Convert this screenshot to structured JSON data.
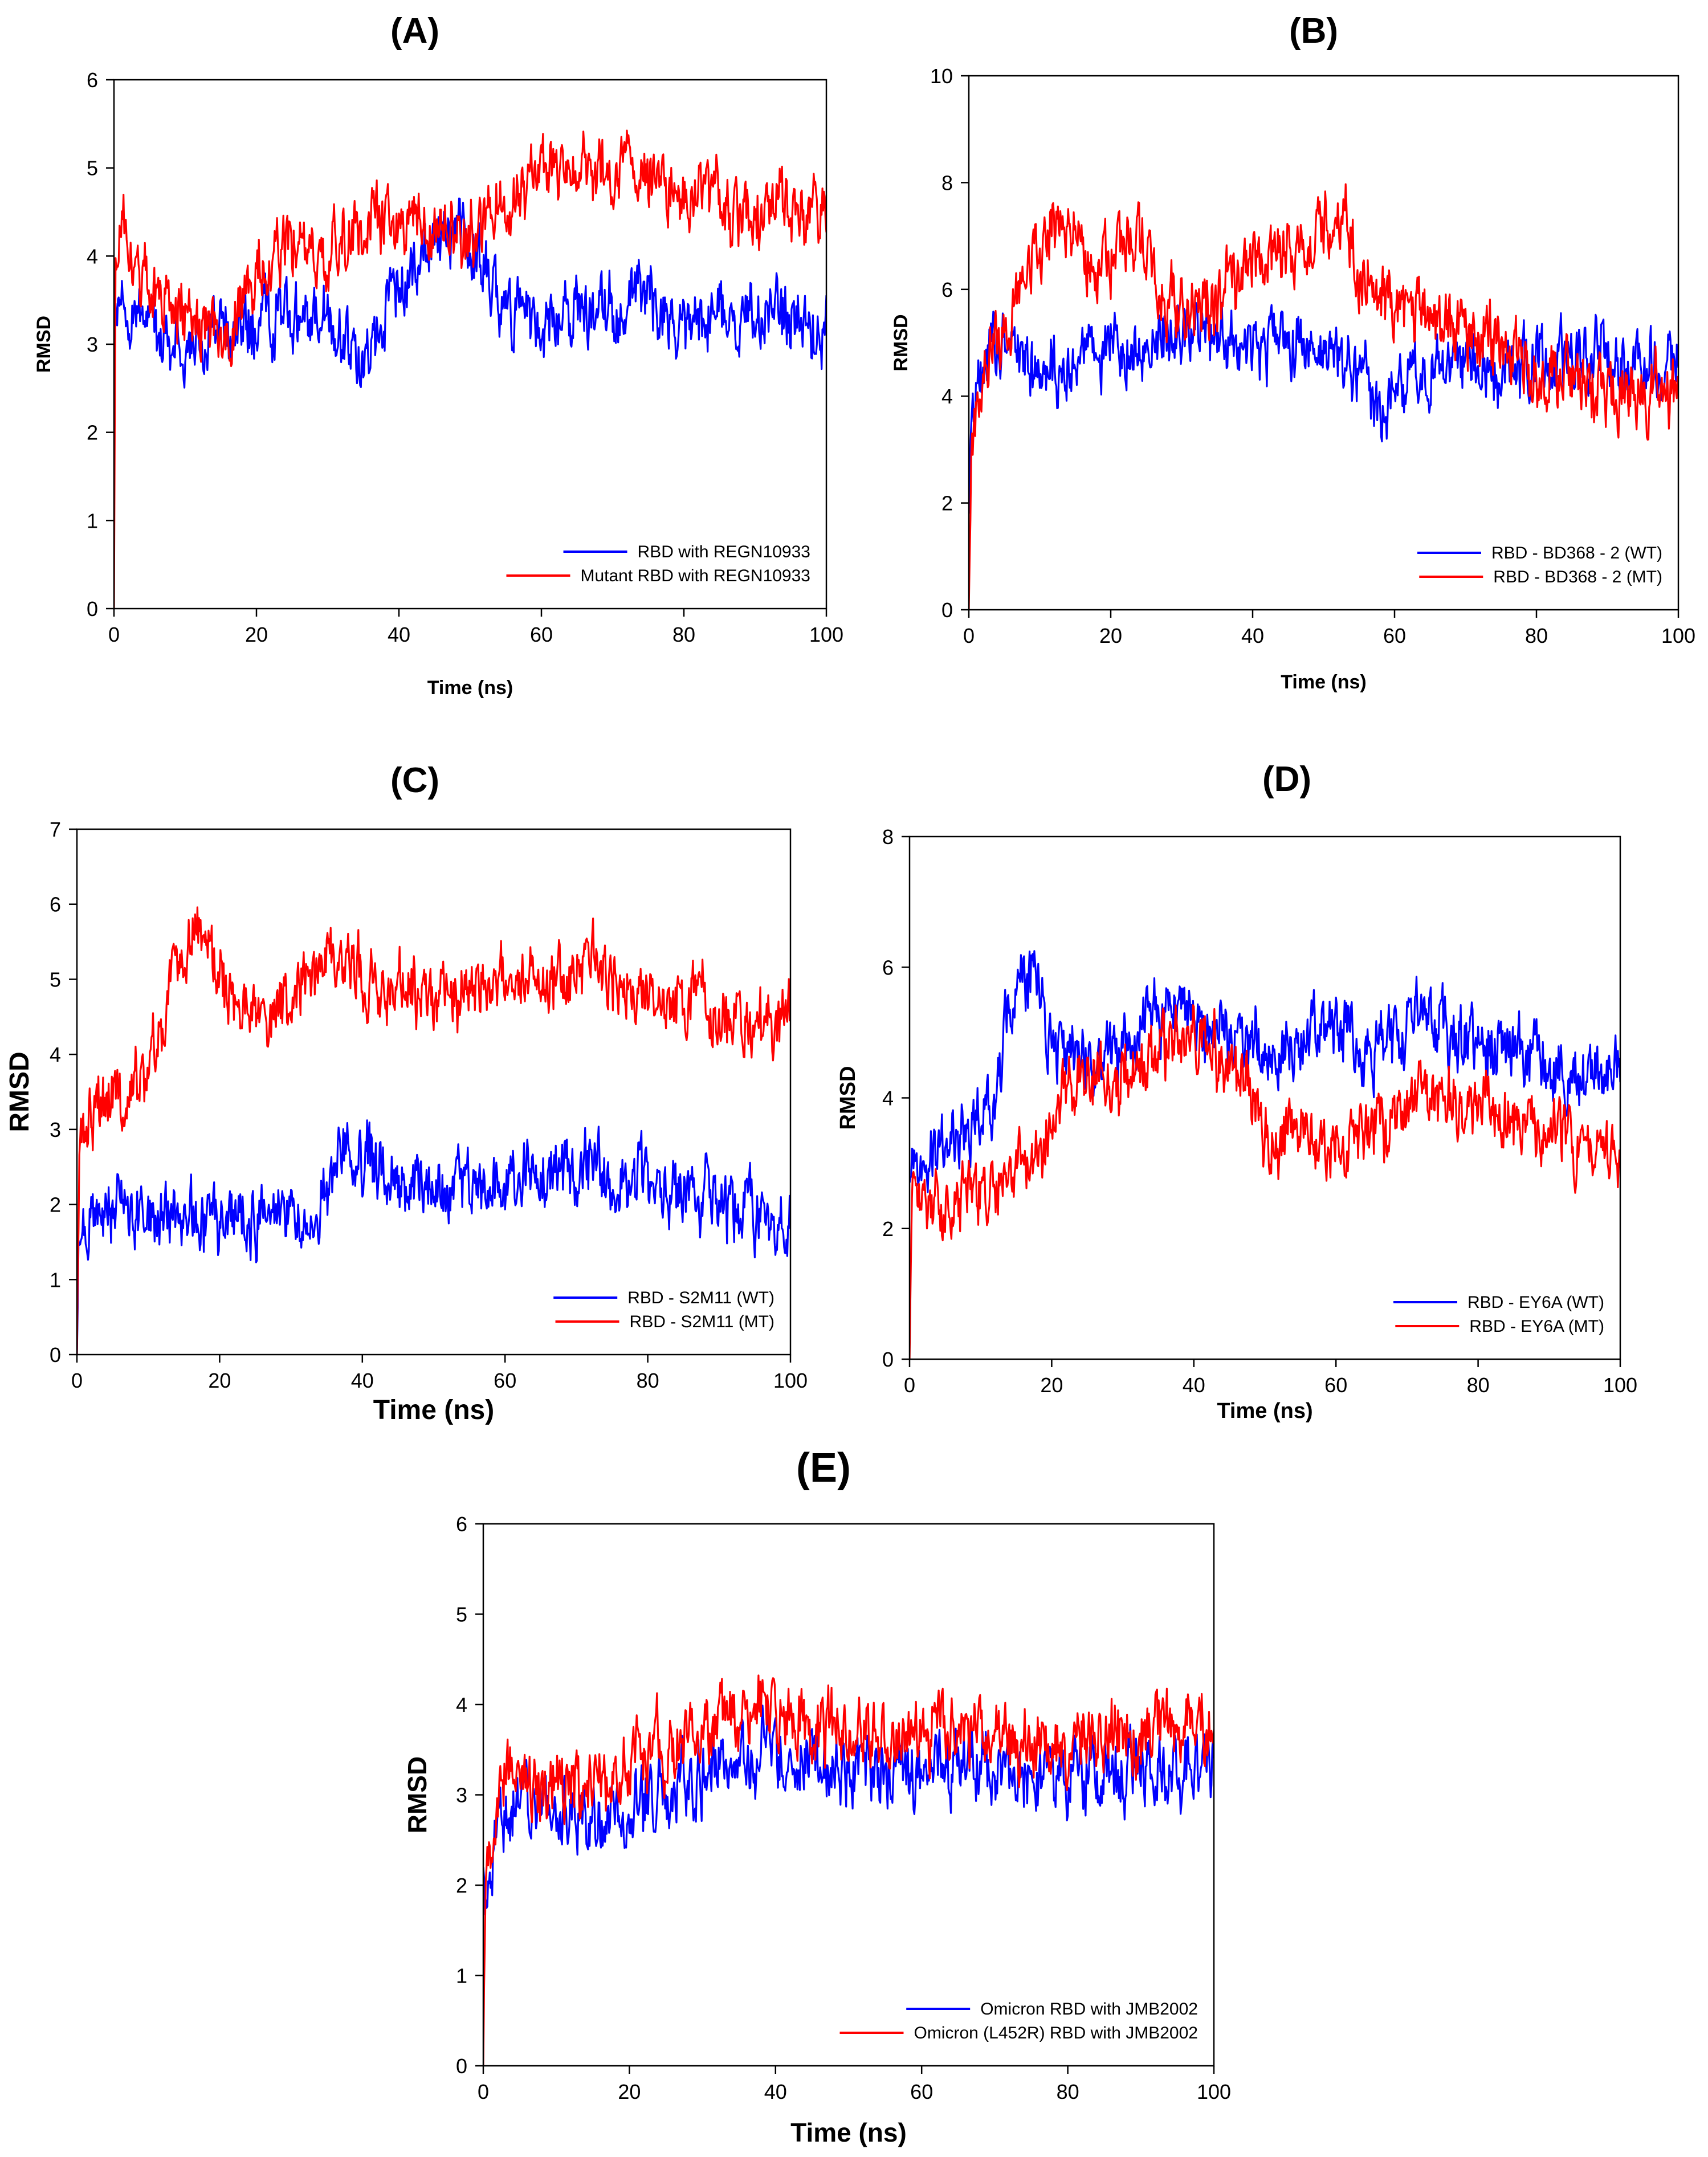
{
  "colors": {
    "wt": "#0000ff",
    "mt": "#ff0000",
    "axis": "#000000",
    "background": "#ffffff"
  },
  "chart_data": [
    {
      "id": "A",
      "type": "line",
      "title": "(A)",
      "xlabel": "Time (ns)",
      "ylabel": "RMSD",
      "xlim": [
        0,
        100
      ],
      "ylim": [
        0,
        6
      ],
      "xticks": [
        0,
        20,
        40,
        60,
        80,
        100
      ],
      "yticks": [
        0,
        1,
        2,
        3,
        4,
        5,
        6
      ],
      "grid": false,
      "legend_position": "bottom-right",
      "series": [
        {
          "name": "RBD with REGN10933",
          "color": "#0000ff",
          "x": [
            0,
            0.2,
            1,
            2,
            3,
            4,
            5,
            7,
            10,
            15,
            20,
            25,
            30,
            33,
            35,
            37,
            40,
            43,
            45,
            48,
            50,
            52,
            55,
            58,
            60,
            65,
            70,
            73,
            75,
            80,
            85,
            90,
            95,
            100
          ],
          "y": [
            1.9,
            3.3,
            3.7,
            3.5,
            3.3,
            3.4,
            3.2,
            3.1,
            3.0,
            3.1,
            3.2,
            3.3,
            3.2,
            3.0,
            2.8,
            3.1,
            3.6,
            4.0,
            4.2,
            4.3,
            4.1,
            3.8,
            3.5,
            3.2,
            3.1,
            3.3,
            3.4,
            3.7,
            3.5,
            3.2,
            3.3,
            3.2,
            3.3,
            3.2
          ]
        },
        {
          "name": "Mutant RBD with REGN10933",
          "color": "#ff0000",
          "x": [
            0,
            0.2,
            1,
            2,
            3,
            5,
            8,
            10,
            15,
            18,
            20,
            25,
            30,
            33,
            35,
            40,
            45,
            50,
            55,
            60,
            65,
            70,
            73,
            75,
            80,
            85,
            90,
            95,
            100
          ],
          "y": [
            0,
            3.8,
            4.5,
            4.1,
            3.8,
            3.6,
            3.4,
            3.3,
            3.1,
            3.3,
            3.8,
            4.1,
            3.9,
            4.3,
            4.4,
            4.5,
            4.4,
            4.3,
            4.6,
            4.9,
            5.0,
            4.9,
            5.0,
            4.9,
            4.7,
            4.6,
            4.5,
            4.6,
            4.4
          ]
        }
      ]
    },
    {
      "id": "B",
      "type": "line",
      "title": "(B)",
      "xlabel": "Time (ns)",
      "ylabel": "RMSD",
      "xlim": [
        0,
        100
      ],
      "ylim": [
        0,
        10
      ],
      "xticks": [
        0,
        20,
        40,
        60,
        80,
        100
      ],
      "yticks": [
        0,
        2,
        4,
        6,
        8,
        10
      ],
      "grid": false,
      "legend_position": "bottom-right",
      "series": [
        {
          "name": "RBD - BD368 - 2 (WT)",
          "color": "#0000ff",
          "x": [
            0,
            0.3,
            1,
            2,
            4,
            6,
            8,
            10,
            15,
            20,
            25,
            30,
            35,
            40,
            45,
            50,
            55,
            58,
            60,
            65,
            70,
            75,
            80,
            85,
            90,
            95,
            100
          ],
          "y": [
            1.8,
            3.8,
            4.3,
            4.6,
            4.8,
            4.9,
            4.7,
            4.4,
            4.6,
            4.9,
            5.0,
            5.2,
            5.1,
            4.8,
            5.0,
            4.9,
            4.5,
            3.6,
            4.2,
            4.5,
            4.6,
            4.5,
            4.8,
            4.6,
            4.8,
            4.6,
            4.7
          ]
        },
        {
          "name": "RBD - BD368 - 2 (MT)",
          "color": "#ff0000",
          "x": [
            0,
            0.3,
            1,
            2,
            4,
            6,
            8,
            10,
            12,
            15,
            20,
            23,
            25,
            28,
            30,
            35,
            38,
            40,
            45,
            48,
            50,
            52,
            55,
            60,
            65,
            70,
            75,
            80,
            85,
            90,
            95,
            100
          ],
          "y": [
            0,
            2.5,
            3.8,
            4.5,
            5.0,
            5.5,
            6.0,
            6.8,
            7.3,
            6.8,
            6.5,
            7.0,
            6.6,
            6.0,
            5.7,
            5.6,
            6.2,
            6.5,
            6.6,
            6.9,
            7.2,
            7.6,
            6.4,
            5.9,
            5.5,
            5.1,
            4.9,
            4.5,
            4.3,
            4.1,
            3.9,
            4.2
          ]
        }
      ]
    },
    {
      "id": "C",
      "type": "line",
      "title": "(C)",
      "xlabel": "Time (ns)",
      "ylabel": "RMSD",
      "xlim": [
        0,
        100
      ],
      "ylim": [
        0,
        7
      ],
      "xticks": [
        0,
        20,
        40,
        60,
        80,
        100
      ],
      "yticks": [
        0,
        1,
        2,
        3,
        4,
        5,
        6,
        7
      ],
      "grid": false,
      "legend_position": "bottom-right",
      "series": [
        {
          "name": "RBD - S2M11 (WT)",
          "color": "#0000ff",
          "x": [
            0,
            0.3,
            1,
            3,
            5,
            10,
            15,
            20,
            25,
            30,
            33,
            35,
            37,
            40,
            43,
            45,
            50,
            55,
            60,
            65,
            70,
            73,
            75,
            80,
            85,
            88,
            90,
            95,
            100
          ],
          "y": [
            0,
            1.7,
            1.8,
            1.8,
            1.9,
            1.8,
            1.8,
            1.8,
            1.8,
            1.9,
            1.9,
            2.1,
            2.7,
            2.7,
            2.4,
            2.3,
            2.3,
            2.1,
            2.3,
            2.5,
            2.4,
            2.5,
            2.3,
            2.2,
            2.0,
            2.2,
            2.0,
            1.8,
            1.8
          ]
        },
        {
          "name": "RBD - S2M11 (MT)",
          "color": "#ff0000",
          "x": [
            0,
            0.3,
            1,
            3,
            5,
            8,
            10,
            12,
            14,
            16,
            18,
            20,
            22,
            25,
            28,
            30,
            32,
            35,
            38,
            40,
            42,
            45,
            50,
            55,
            60,
            65,
            70,
            72,
            75,
            80,
            85,
            88,
            90,
            95,
            100
          ],
          "y": [
            0,
            2.8,
            3.0,
            3.2,
            3.4,
            3.5,
            3.9,
            4.3,
            5.1,
            5.6,
            5.8,
            5.0,
            4.6,
            4.5,
            4.5,
            4.8,
            5.0,
            5.2,
            5.3,
            5.1,
            4.8,
            5.0,
            4.5,
            4.9,
            5.1,
            4.9,
            5.0,
            5.3,
            4.9,
            4.8,
            4.6,
            4.9,
            4.5,
            4.3,
            4.5
          ]
        }
      ]
    },
    {
      "id": "D",
      "type": "line",
      "title": "(D)",
      "xlabel": "Time (ns)",
      "ylabel": "RMSD",
      "xlim": [
        0,
        100
      ],
      "ylim": [
        0,
        8
      ],
      "xticks": [
        0,
        20,
        40,
        60,
        80,
        100
      ],
      "yticks": [
        0,
        2,
        4,
        6,
        8
      ],
      "grid": false,
      "legend_position": "bottom-right",
      "series": [
        {
          "name": "RBD - EY6A (WT)",
          "color": "#0000ff",
          "x": [
            0,
            0.3,
            2,
            5,
            8,
            10,
            12,
            14,
            16,
            18,
            20,
            22,
            25,
            30,
            35,
            38,
            40,
            45,
            50,
            55,
            58,
            60,
            65,
            70,
            73,
            75,
            80,
            85,
            90,
            95,
            100
          ],
          "y": [
            2.7,
            2.9,
            3.0,
            3.3,
            3.4,
            3.7,
            4.1,
            5.2,
            5.9,
            5.8,
            4.8,
            4.6,
            4.5,
            4.8,
            5.2,
            5.4,
            5.1,
            4.9,
            4.7,
            4.9,
            5.1,
            5.2,
            4.6,
            5.1,
            5.4,
            5.0,
            4.8,
            4.7,
            4.5,
            4.3,
            4.6
          ]
        },
        {
          "name": "RBD - EY6A (MT)",
          "color": "#ff0000",
          "x": [
            0,
            0.3,
            2,
            5,
            10,
            15,
            18,
            20,
            22,
            25,
            30,
            35,
            38,
            40,
            42,
            45,
            48,
            50,
            52,
            55,
            60,
            65,
            70,
            75,
            80,
            85,
            90,
            95,
            100
          ],
          "y": [
            0,
            2.4,
            2.5,
            2.4,
            2.6,
            2.8,
            3.1,
            3.6,
            4.1,
            4.3,
            4.4,
            4.7,
            5.0,
            4.9,
            4.6,
            4.5,
            4.3,
            3.5,
            3.3,
            3.6,
            3.2,
            3.5,
            3.8,
            3.9,
            4.0,
            3.7,
            3.5,
            3.3,
            3.1
          ]
        }
      ]
    },
    {
      "id": "E",
      "type": "line",
      "title": "(E)",
      "xlabel": "Time (ns)",
      "ylabel": "RMSD",
      "xlim": [
        0,
        100
      ],
      "ylim": [
        0,
        6
      ],
      "xticks": [
        0,
        20,
        40,
        60,
        80,
        100
      ],
      "yticks": [
        0,
        1,
        2,
        3,
        4,
        5,
        6
      ],
      "grid": false,
      "legend_position": "bottom-right",
      "series": [
        {
          "name": "Omicron RBD with JMB2002",
          "color": "#0000ff",
          "x": [
            0,
            0.3,
            1,
            2,
            3,
            5,
            8,
            10,
            15,
            18,
            20,
            25,
            30,
            35,
            38,
            40,
            45,
            50,
            55,
            60,
            65,
            70,
            75,
            80,
            85,
            90,
            95,
            100
          ],
          "y": [
            2.2,
            1.9,
            2.4,
            2.6,
            2.8,
            2.9,
            2.8,
            2.8,
            2.7,
            2.7,
            2.9,
            3.0,
            3.2,
            3.4,
            3.6,
            3.5,
            3.4,
            3.3,
            3.3,
            3.2,
            3.3,
            3.3,
            3.2,
            3.2,
            3.3,
            3.3,
            3.3,
            3.4
          ]
        },
        {
          "name": "Omicron (L452R) RBD with JMB2002",
          "color": "#ff0000",
          "x": [
            0,
            0.3,
            1,
            2,
            3,
            5,
            8,
            10,
            12,
            15,
            18,
            20,
            25,
            30,
            35,
            38,
            40,
            42,
            45,
            50,
            55,
            60,
            65,
            70,
            75,
            80,
            85,
            90,
            95,
            100
          ],
          "y": [
            0,
            2.3,
            2.6,
            3.0,
            3.2,
            3.3,
            3.1,
            3.2,
            3.0,
            3.1,
            3.2,
            3.4,
            3.5,
            3.6,
            3.8,
            4.1,
            3.9,
            3.9,
            3.7,
            3.7,
            3.6,
            3.7,
            3.7,
            3.6,
            3.6,
            3.6,
            3.7,
            3.7,
            3.8,
            3.8
          ]
        }
      ]
    }
  ]
}
